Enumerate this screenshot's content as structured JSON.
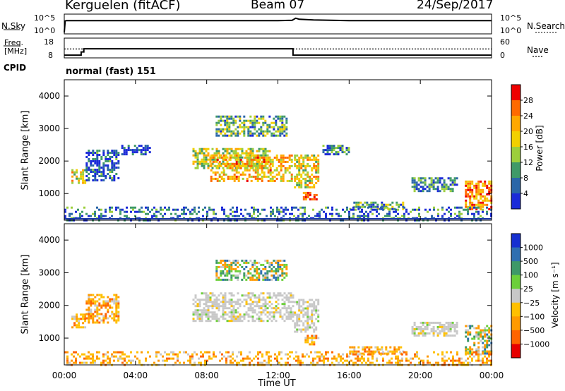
{
  "header": {
    "station": "Kerguelen (fitACF)",
    "beam": "Beam 07",
    "date": "24/Sep/2017"
  },
  "nsky_panel": {
    "left_label": "N.Sky",
    "left_ticks": [
      "10^5",
      "10^0"
    ],
    "right_label": "N.Search",
    "right_ticks": [
      "10^5",
      "10^0"
    ]
  },
  "freq_panel": {
    "left_label_1": "Freq.",
    "left_label_2": "[MHz]",
    "left_ticks": [
      "18",
      "8"
    ],
    "right_label": "Nave",
    "right_ticks": [
      "60",
      "0"
    ]
  },
  "cpid": {
    "label": "CPID",
    "value": "normal (fast) 151"
  },
  "x_axis": {
    "ticks": [
      "00:00",
      "04:00",
      "08:00",
      "12:00",
      "16:00",
      "20:00",
      "00:00"
    ],
    "label": "Time UT"
  },
  "power_colorbar": {
    "label": "Power [dB]",
    "ticks": [
      "28",
      "24",
      "20",
      "16",
      "12",
      "8",
      "4"
    ],
    "colors": [
      "#ee0000",
      "#ff6a00",
      "#ffa800",
      "#f2d000",
      "#9ccf3c",
      "#3f9a68",
      "#2a66a8",
      "#1b2ad8"
    ]
  },
  "velocity_colorbar": {
    "label": "Velocity [m s⁻¹]",
    "ticks": [
      "1000",
      "500",
      "100",
      "25",
      "−25",
      "−100",
      "−500",
      "−1000"
    ],
    "colors": [
      "#1630d0",
      "#2f6fb0",
      "#3d9868",
      "#6ccf3a",
      "#c8c8c8",
      "#ffc000",
      "#ff9a00",
      "#ff6400",
      "#e60000"
    ]
  },
  "chart_data": [
    {
      "type": "line",
      "panel": "N.Sky / N.Search",
      "x_range_hours": [
        0,
        24
      ],
      "ylim_log10": [
        0,
        5
      ],
      "series": [
        {
          "x": [
            0,
            0.05,
            0.1,
            6,
            12,
            12.8,
            13.0,
            13.2,
            14,
            16,
            24
          ],
          "y_log10": [
            0,
            3.4,
            3.5,
            3.5,
            3.5,
            3.6,
            4.2,
            3.9,
            3.7,
            3.5,
            3.5
          ]
        }
      ]
    },
    {
      "type": "line",
      "panel": "Freq. / Nave",
      "x_range_hours": [
        0,
        24
      ],
      "ylim_freq_mhz": [
        8,
        18
      ],
      "ylim_nave": [
        0,
        60
      ],
      "series": [
        {
          "x": [
            0,
            0.95,
            0.95,
            1.1,
            1.1,
            12.85,
            12.85,
            24
          ],
          "y_freq_mhz": [
            9.4,
            9.4,
            11.0,
            11.0,
            12.6,
            12.6,
            9.4,
            9.4
          ]
        },
        {
          "x": [
            0,
            24
          ],
          "y_nave": [
            27,
            27
          ]
        }
      ]
    },
    {
      "type": "heatmap",
      "panel": "Power",
      "x_range_hours": [
        0,
        24
      ],
      "ylabel": "Slant Range [km]",
      "ylim_km": [
        180,
        4500
      ],
      "yticks_km": [
        1000,
        2000,
        3000,
        4000
      ],
      "regions": [
        {
          "t": [
            0.4,
            1.2
          ],
          "r": [
            1350,
            1750
          ],
          "level": 0.55
        },
        {
          "t": [
            1.2,
            3.0
          ],
          "r": [
            1400,
            2350
          ],
          "level": 0.15
        },
        {
          "t": [
            3.2,
            4.8
          ],
          "r": [
            2200,
            2500
          ],
          "level": 0.15
        },
        {
          "t": [
            7.2,
            11.5
          ],
          "r": [
            1800,
            2400
          ],
          "level": 0.5
        },
        {
          "t": [
            8.2,
            12.8
          ],
          "r": [
            1400,
            2200
          ],
          "level": 0.65
        },
        {
          "t": [
            12.9,
            14.3
          ],
          "r": [
            1200,
            2200
          ],
          "level": 0.55
        },
        {
          "t": [
            13.4,
            14.2
          ],
          "r": [
            800,
            1050
          ],
          "level": 0.92
        },
        {
          "t": [
            8.5,
            12.5
          ],
          "r": [
            2800,
            3400
          ],
          "level": 0.35
        },
        {
          "t": [
            14.5,
            16.0
          ],
          "r": [
            2200,
            2500
          ],
          "level": 0.25
        },
        {
          "t": [
            16.0,
            19.0
          ],
          "r": [
            500,
            750
          ],
          "level": 0.3
        },
        {
          "t": [
            19.5,
            22.0
          ],
          "r": [
            1100,
            1500
          ],
          "level": 0.25
        },
        {
          "t": [
            22.5,
            24.0
          ],
          "r": [
            500,
            1400
          ],
          "level": 0.75
        },
        {
          "t": [
            0.0,
            24.0
          ],
          "r": [
            200,
            600
          ],
          "level": 0.2
        }
      ]
    },
    {
      "type": "heatmap",
      "panel": "Velocity",
      "x_range_hours": [
        0,
        24
      ],
      "ylabel": "Slant Range [km]",
      "ylim_km": [
        180,
        4500
      ],
      "yticks_km": [
        1000,
        2000,
        3000,
        4000
      ],
      "regions": [
        {
          "t": [
            0.4,
            1.2
          ],
          "r": [
            1350,
            1750
          ],
          "class": "neg"
        },
        {
          "t": [
            1.2,
            3.0
          ],
          "r": [
            1500,
            2350
          ],
          "class": "neg"
        },
        {
          "t": [
            7.2,
            12.8
          ],
          "r": [
            1500,
            2400
          ],
          "class": "grey"
        },
        {
          "t": [
            12.9,
            14.3
          ],
          "r": [
            1200,
            2200
          ],
          "class": "grey"
        },
        {
          "t": [
            8.5,
            12.5
          ],
          "r": [
            2800,
            3400
          ],
          "class": "mix"
        },
        {
          "t": [
            13.5,
            14.3
          ],
          "r": [
            800,
            1100
          ],
          "class": "neg"
        },
        {
          "t": [
            16.0,
            19.0
          ],
          "r": [
            500,
            750
          ],
          "class": "neg"
        },
        {
          "t": [
            19.5,
            22.0
          ],
          "r": [
            1100,
            1500
          ],
          "class": "grey"
        },
        {
          "t": [
            22.5,
            24.0
          ],
          "r": [
            500,
            1400
          ],
          "class": "mix"
        },
        {
          "t": [
            0.0,
            24.0
          ],
          "r": [
            200,
            600
          ],
          "class": "neg"
        }
      ]
    }
  ]
}
